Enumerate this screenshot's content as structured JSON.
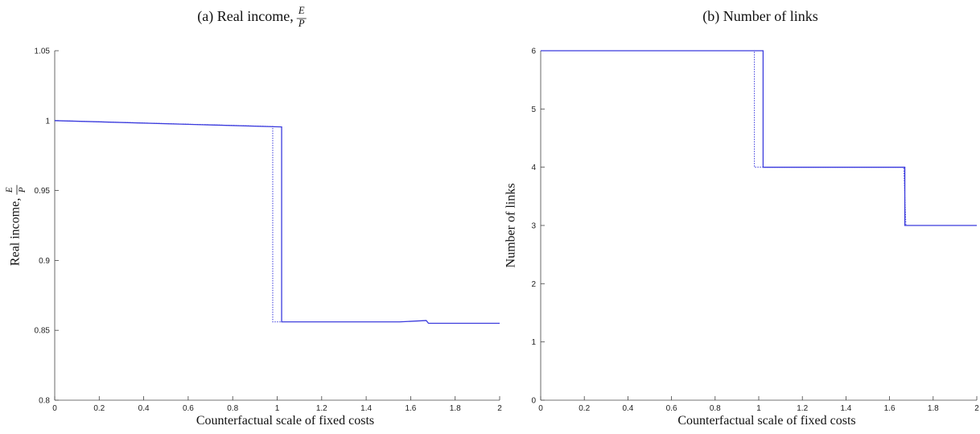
{
  "chart_data": [
    {
      "type": "line",
      "title": "(a) Real income,",
      "title_fraction": {
        "numerator": "E",
        "denominator": "P"
      },
      "x_label": "Counterfactual scale of fixed costs",
      "y_label": "Real income,",
      "y_label_fraction": {
        "numerator": "E",
        "denominator": "P"
      },
      "xlim": [
        0,
        2
      ],
      "xticks": [
        0,
        0.2,
        0.4,
        0.6,
        0.8,
        1,
        1.2,
        1.4,
        1.6,
        1.8,
        2
      ],
      "ylim": [
        0.8,
        1.05
      ],
      "yticks": [
        0.8,
        0.85,
        0.9,
        0.95,
        1,
        1.05
      ],
      "series": [
        {
          "color": "#3b3bdd",
          "dash": "solid",
          "x": [
            0,
            1.02,
            1.02,
            1.55,
            1.67,
            1.68,
            2
          ],
          "values": [
            1.0,
            0.9955,
            0.856,
            0.856,
            0.857,
            0.855,
            0.855
          ]
        },
        {
          "color": "#3b3bdd",
          "dash": "dotted",
          "x": [
            0,
            0.98,
            0.98,
            1.02
          ],
          "values": [
            1.0,
            0.9958,
            0.856,
            0.856
          ]
        }
      ]
    },
    {
      "type": "line",
      "title": "(b) Number of links",
      "x_label": "Counterfactual scale of fixed costs",
      "y_label": "Number of links",
      "xlim": [
        0,
        2
      ],
      "xticks": [
        0,
        0.2,
        0.4,
        0.6,
        0.8,
        1,
        1.2,
        1.4,
        1.6,
        1.8,
        2
      ],
      "ylim": [
        0,
        6
      ],
      "yticks": [
        0,
        1,
        2,
        3,
        4,
        5,
        6
      ],
      "series": [
        {
          "color": "#3b3bdd",
          "dash": "solid",
          "x": [
            0,
            1.02,
            1.02,
            1.67,
            1.67,
            2
          ],
          "values": [
            6,
            6,
            4,
            4,
            3,
            3
          ]
        },
        {
          "color": "#3b3bdd",
          "dash": "dotted",
          "x": [
            0,
            0.98,
            0.98,
            1.02,
            1.665,
            1.675
          ],
          "values": [
            6,
            6,
            4,
            4,
            4,
            3
          ]
        }
      ]
    }
  ]
}
